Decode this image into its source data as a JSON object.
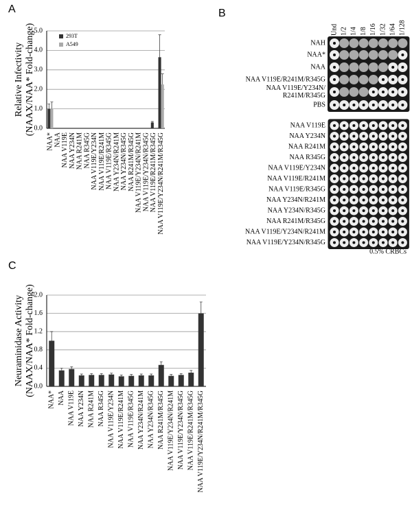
{
  "chart_data": [
    {
      "type": "bar",
      "panel": "A",
      "ylabel": [
        "Relative Infectivity",
        "(NAAX/NAA* Fold-change)"
      ],
      "categories": [
        "NAA*",
        "NAA",
        "NAA V119E",
        "NAA Y234N",
        "NAA R241M",
        "NAA R345G",
        "NAA V119E/Y234N",
        "NAA V119E/R241M",
        "NAA V119E/R345G",
        "NAA Y234N/R241M",
        "NAA Y234N/R345G",
        "NAA R241M/R345G",
        "NAA V119E/Y234N/R241M",
        "NAA V119E/Y234N/R345G",
        "NAA V119E/R241M/R345G",
        "NAA V119E/Y234N/R241M/R345G"
      ],
      "series": [
        {
          "name": "293T",
          "color": "#333333",
          "values": [
            1.0,
            0,
            0,
            0,
            0,
            0,
            0,
            0,
            0,
            0,
            0,
            0,
            0,
            0,
            0.3,
            3.65
          ],
          "errors": [
            0.25,
            0,
            0,
            0,
            0,
            0,
            0,
            0,
            0,
            0,
            0,
            0,
            0,
            0,
            0.05,
            1.15
          ]
        },
        {
          "name": "A549",
          "color": "#aaaaaa",
          "values": [
            1.0,
            0,
            0,
            0,
            0,
            0,
            0,
            0,
            0,
            0,
            0,
            0,
            0,
            0,
            0,
            2.25
          ],
          "errors": [
            0.35,
            0,
            0,
            0,
            0,
            0,
            0,
            0,
            0,
            0,
            0,
            0,
            0,
            0,
            0,
            0.55
          ]
        }
      ],
      "ylim": [
        0,
        5
      ],
      "yticks": [
        {
          "value": 0,
          "label": "0.0"
        },
        {
          "value": 1,
          "label": "1.0"
        },
        {
          "value": 2,
          "label": "2.0"
        },
        {
          "value": 3,
          "label": "3.0"
        },
        {
          "value": 4,
          "label": "4.0"
        },
        {
          "value": 5,
          "label": "5.0"
        }
      ],
      "grid": true,
      "legend": "upper left"
    },
    {
      "type": "bar",
      "panel": "C",
      "ylabel": [
        "Neuraminidase Activity",
        "(NAAX/NAA* Fold-change)"
      ],
      "categories": [
        "NAA*",
        "NAA",
        "NAA V119E",
        "NAA Y234N",
        "NAA R241M",
        "NAA R345G",
        "NAA V119E/Y234N",
        "NAA V119E/R241M",
        "NAA V119E/R345G",
        "NAA Y234N/R241M",
        "NAA Y234N/R345G",
        "NAA R241M/R345G",
        "NAA V119E/Y234N/R241M",
        "NAA V119E/Y234N/R345G",
        "NAA V119E/R241M/R345G",
        "NAA V119E/Y234N/R241M/R345G"
      ],
      "values": [
        1.0,
        0.35,
        0.38,
        0.24,
        0.25,
        0.25,
        0.26,
        0.22,
        0.23,
        0.24,
        0.24,
        0.47,
        0.23,
        0.25,
        0.3,
        1.6
      ],
      "errors": [
        0.2,
        0.05,
        0.05,
        0.03,
        0.03,
        0.03,
        0.03,
        0.03,
        0.03,
        0.03,
        0.03,
        0.07,
        0.03,
        0.03,
        0.05,
        0.25
      ],
      "color": "#333333",
      "ylim": [
        0,
        2
      ],
      "yticks": [
        {
          "value": 0,
          "label": "0.0"
        },
        {
          "value": 0.4,
          "label": "0.4"
        },
        {
          "value": 0.8,
          "label": "0.8"
        },
        {
          "value": 1.2,
          "label": "1.2"
        },
        {
          "value": 1.6,
          "label": "1.6"
        },
        {
          "value": 2,
          "label": "2.0"
        }
      ],
      "grid": true
    }
  ],
  "panel_b": {
    "panel": "B",
    "columns": [
      "Und",
      "1/2",
      "1/4",
      "1/8",
      "1/16",
      "1/32",
      "1/64",
      "1/128"
    ],
    "top_rows": [
      [
        "NAH"
      ],
      [
        "NAA*"
      ],
      [
        "NAA"
      ],
      [
        "NAA V119E/R241M/R345G"
      ],
      [
        "NAA V119E/Y234N/",
        "R241M/R345G"
      ],
      [
        "PBS"
      ]
    ],
    "bottom_rows": [
      "NAA V119E",
      "NAA Y234N",
      "NAA R241M",
      "NAA R345G",
      "NAA V119E/Y234N",
      "NAA V119E/R241M",
      "NAA V119E/R345G",
      "NAA Y234N/R241M",
      "NAA Y234N/R345G",
      "NAA R241M/R345G",
      "NAA V119E/Y234N/R241M",
      "NAA V119E/Y234N/R345G"
    ],
    "footnote": "0.5% CRBCs"
  }
}
